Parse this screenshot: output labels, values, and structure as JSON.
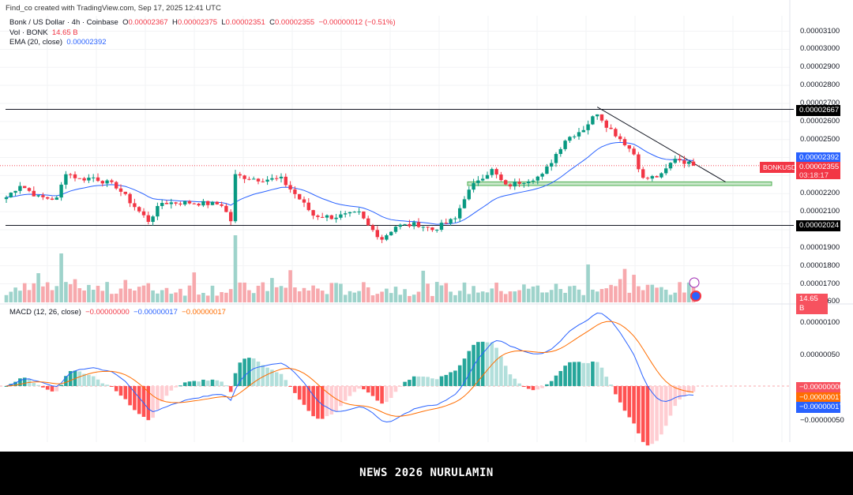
{
  "credit": "Find_co created with TradingView.com, Sep 17, 2025 12:41 UTC",
  "legend": {
    "symbol": "Bonk / US Dollar · 4h · Coinbase",
    "o_label": "O",
    "o": "0.00002367",
    "h_label": "H",
    "h": "0.00002375",
    "l_label": "L",
    "l": "0.00002351",
    "c_label": "C",
    "c": "0.00002355",
    "change": "−0.00000012 (−0.51%)",
    "vol_label": "Vol · BONK",
    "vol": "14.65 B",
    "ema_label": "EMA (20, close)",
    "ema": "0.00002392"
  },
  "macd_legend": {
    "label": "MACD (12, 26, close)",
    "hist": "−0.00000000",
    "macd": "−0.00000017",
    "signal": "−0.00000017"
  },
  "price_axis": [
    "0.00003100",
    "0.00003000",
    "0.00002900",
    "0.00002800",
    "0.00002700",
    "0.00002600",
    "0.00002500",
    "0.00002200",
    "0.00002100",
    "0.00001900",
    "0.00001800",
    "0.00001700",
    "0.00001600"
  ],
  "macd_axis": [
    "0.00000100",
    "0.00000050",
    "−0.00000050"
  ],
  "tags": {
    "resistance": "0.00002667",
    "support": "0.00002024",
    "ema": "0.00002392",
    "symbol": "BONKUSD",
    "price": "0.00002355",
    "countdown": "03:18:17",
    "volume": "14.65 B",
    "macd_hist": "−0.00000000",
    "macd_signal": "−0.00000017",
    "macd_line": "−0.00000017"
  },
  "footer": "NEWS 2026 NURULAMIN",
  "colors": {
    "up": "#089981",
    "down": "#f23645",
    "ema": "#2962ff",
    "signal": "#ff6d00",
    "zone": "#4caf50"
  },
  "chart_data": {
    "type": "candlestick",
    "title": "Bonk / US Dollar · 4h · Coinbase",
    "price_unit": "1e-8 USD",
    "close_keypoints": [
      [
        0,
        2180
      ],
      [
        3,
        2250
      ],
      [
        7,
        2180
      ],
      [
        11,
        2170
      ],
      [
        13,
        2320
      ],
      [
        16,
        2280
      ],
      [
        19,
        2290
      ],
      [
        24,
        2240
      ],
      [
        29,
        2100
      ],
      [
        31,
        2050
      ],
      [
        34,
        2150
      ],
      [
        40,
        2150
      ],
      [
        47,
        2140
      ],
      [
        49,
        2050
      ],
      [
        50,
        2300
      ],
      [
        55,
        2280
      ],
      [
        60,
        2280
      ],
      [
        64,
        2170
      ],
      [
        67,
        2080
      ],
      [
        71,
        2070
      ],
      [
        77,
        2090
      ],
      [
        79,
        2020
      ],
      [
        82,
        1950
      ],
      [
        85,
        2020
      ],
      [
        90,
        2030
      ],
      [
        93,
        2000
      ],
      [
        98,
        2060
      ],
      [
        100,
        2180
      ],
      [
        103,
        2280
      ],
      [
        106,
        2330
      ],
      [
        109,
        2240
      ],
      [
        114,
        2280
      ],
      [
        117,
        2300
      ],
      [
        119,
        2380
      ],
      [
        122,
        2500
      ],
      [
        126,
        2560
      ],
      [
        129,
        2650
      ],
      [
        131,
        2580
      ],
      [
        135,
        2480
      ],
      [
        137,
        2420
      ],
      [
        139,
        2280
      ],
      [
        143,
        2300
      ],
      [
        146,
        2400
      ],
      [
        150,
        2355
      ]
    ],
    "horizontal_lines": [
      2667,
      2024
    ],
    "support_zone": [
      2245,
      2265
    ],
    "trendline": [
      [
        129,
        2680
      ],
      [
        157,
        2265
      ]
    ],
    "ylim": [
      1600,
      3150
    ]
  }
}
